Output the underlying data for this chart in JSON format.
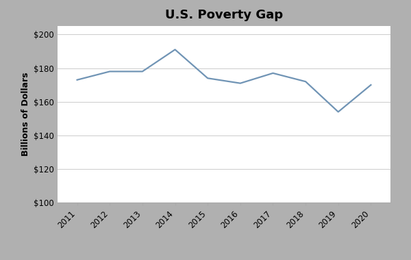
{
  "title": "U.S. Poverty Gap",
  "ylabel": "Billions of Dollars",
  "years": [
    2011,
    2012,
    2013,
    2014,
    2015,
    2016,
    2017,
    2018,
    2019,
    2020
  ],
  "values": [
    173,
    178,
    178,
    191,
    174,
    171,
    177,
    172,
    154,
    170
  ],
  "ylim": [
    100,
    205
  ],
  "yticks": [
    100,
    120,
    140,
    160,
    180,
    200
  ],
  "line_color": "#7094b5",
  "plot_bg": "#ffffff",
  "outer_bg": "#b0b0b0",
  "title_fontsize": 13,
  "label_fontsize": 9,
  "tick_fontsize": 8.5,
  "xlim": [
    2010.4,
    2020.6
  ]
}
